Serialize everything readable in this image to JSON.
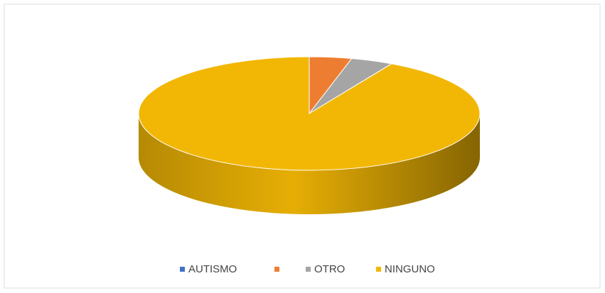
{
  "chart_data": {
    "type": "pie",
    "categories": [
      "AUTISMO",
      null,
      "OTRO",
      "NINGUNO"
    ],
    "values": [
      0,
      4,
      4,
      92
    ],
    "colors": [
      "#4472c4",
      "#ed7d31",
      "#a5a5a5",
      "#f2b705"
    ],
    "legend": "bottom"
  }
}
